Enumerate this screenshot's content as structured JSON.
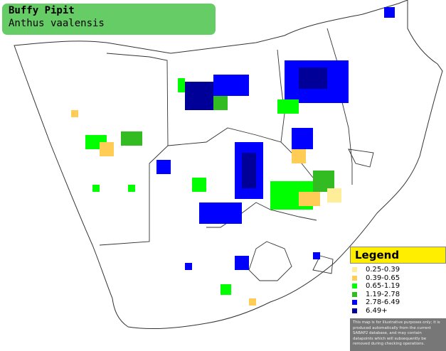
{
  "title": {
    "species": "Buffy Pipit",
    "latin": "Anthus vaalensis"
  },
  "legend": {
    "heading": "Legend",
    "items": [
      {
        "label": "0.25-0.39",
        "color": "#ffee99"
      },
      {
        "label": "0.39-0.65",
        "color": "#ffcc55"
      },
      {
        "label": "0.65-1.19",
        "color": "#00ff00"
      },
      {
        "label": "1.19-2.78",
        "color": "#33bb22"
      },
      {
        "label": "2.78-6.49",
        "color": "#0000ff"
      },
      {
        "label": "6.49+",
        "color": "#000099"
      }
    ],
    "disclaimer": "This map is for illustrative purposes only; it is produced automatically from the current SABAP2 database, and may contain datapoints which will subsequently be removed during checking operations."
  },
  "colors": {
    "ocean": "#ffffff",
    "land": "#ffffff",
    "border": "#000000",
    "title_bg": "#66cc66"
  }
}
